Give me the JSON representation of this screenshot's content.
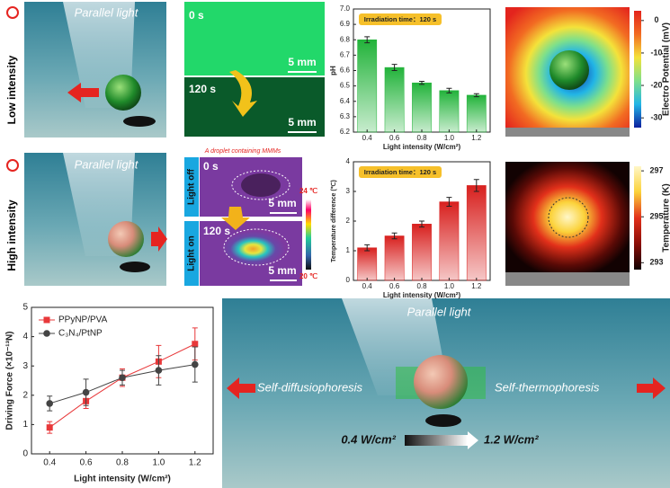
{
  "chart_data": [
    {
      "type": "bar",
      "annotation": "Irradiation time：120 s",
      "x_label": "Light intensity (W/cm²)",
      "y_label": "pH",
      "categories": [
        "0.4",
        "0.6",
        "0.8",
        "1.0",
        "1.2"
      ],
      "values": [
        6.8,
        6.62,
        6.52,
        6.47,
        6.44
      ],
      "errors": [
        0.02,
        0.02,
        0.01,
        0.015,
        0.01
      ],
      "color": "#22b33a",
      "ylim": [
        6.2,
        7.0
      ],
      "yticks": [
        6.2,
        6.3,
        6.4,
        6.5,
        6.6,
        6.7,
        6.8,
        6.9,
        {
          "value": 7.0,
          "label": "7.0"
        }
      ]
    },
    {
      "type": "bar",
      "annotation": "Irradiation time：120 s",
      "x_label": "Light intensity (W/cm²)",
      "y_label": "Temperature difference (℃)",
      "categories": [
        "0.4",
        "0.6",
        "0.8",
        "1.0",
        "1.2"
      ],
      "values": [
        1.1,
        1.5,
        1.9,
        2.65,
        3.2
      ],
      "errors": [
        0.1,
        0.1,
        0.1,
        0.15,
        0.2
      ],
      "color": "#d8201e",
      "ylim": [
        0,
        4
      ],
      "yticks": [
        0,
        1,
        2,
        3,
        4
      ]
    },
    {
      "type": "line",
      "x_label": "Light intensity (W/cm²)",
      "y_label": "Driving Force (×10⁻¹³N)",
      "x": [
        0.4,
        0.6,
        0.8,
        1.0,
        1.2
      ],
      "xlim": [
        0.3,
        1.3
      ],
      "xticks": [
        0.4,
        0.6,
        0.8,
        {
          "value": 1.0,
          "label": "1.0"
        },
        1.2
      ],
      "ylim": [
        0,
        5
      ],
      "yticks": [
        0,
        1,
        2,
        3,
        4,
        5
      ],
      "legend": "upper left",
      "series": [
        {
          "name": "PPyNP/PVA",
          "color": "#e8383a",
          "marker": "square",
          "values": [
            0.9,
            1.8,
            2.6,
            3.15,
            3.75
          ],
          "errors": [
            0.2,
            0.25,
            0.3,
            0.55,
            0.55
          ]
        },
        {
          "name": "C₃N₄/PtNP",
          "color": "#444444",
          "marker": "circle",
          "values": [
            1.72,
            2.1,
            2.6,
            2.85,
            3.05
          ],
          "errors": [
            0.25,
            0.45,
            0.25,
            0.5,
            0.6
          ]
        }
      ]
    }
  ],
  "colorbars": [
    {
      "label": "Electro Potential (mV)",
      "lim": [
        -33,
        3
      ],
      "ticks": [
        0,
        -10,
        -20,
        -30
      ],
      "colors": [
        "#0c1f9e",
        "#22b5e6",
        "#7fe08a",
        "#f4e23a",
        "#f26b22",
        "#e3241d"
      ]
    },
    {
      "label": "Temperature (K)",
      "lim": [
        292.7,
        297.2
      ],
      "ticks": [
        297,
        295,
        293
      ],
      "colors": [
        "#120202",
        "#8a0e08",
        "#e2301a",
        "#fbd23a",
        "#fff7c8"
      ]
    }
  ],
  "panels": {
    "low": {
      "label": "Low intensity",
      "light": "Parallel light"
    },
    "green": {
      "t0": "0 s",
      "t1": "120 s",
      "scale_top": "5 mm",
      "scale_bottom": "5 mm"
    },
    "high": {
      "label": "High intensity",
      "light": "Parallel light"
    },
    "thermal": {
      "note": "A droplet containing MMMs",
      "off": "Light off",
      "on": "Light on",
      "t0": "0 s",
      "t1": "120 s",
      "scale_top": "5 mm",
      "scale_bottom": "5 mm",
      "max": "24 ℃",
      "min": "20 ℃"
    },
    "scheme": {
      "light": "Parallel light",
      "left": "Self-diffusiophoresis",
      "right": "Self-thermophoresis",
      "low": "0.4 W/cm²",
      "high": "1.2 W/cm²"
    }
  }
}
